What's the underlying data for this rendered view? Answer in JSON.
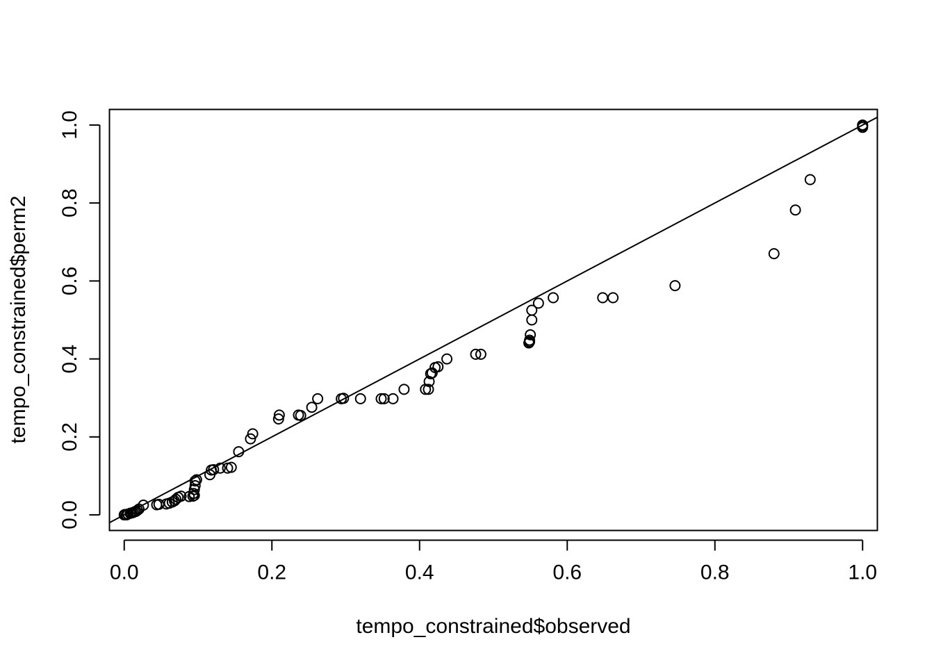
{
  "chart_data": {
    "type": "scatter",
    "title": "",
    "xlabel": "tempo_constrained$observed",
    "ylabel": "tempo_constrained$perm2",
    "xlim": [
      -0.02,
      1.02
    ],
    "ylim": [
      -0.04,
      1.04
    ],
    "xticks": [
      0.0,
      0.2,
      0.4,
      0.6,
      0.8,
      1.0
    ],
    "xtick_labels": [
      "0.0",
      "0.2",
      "0.4",
      "0.6",
      "0.8",
      "1.0"
    ],
    "yticks": [
      0.0,
      0.2,
      0.4,
      0.6,
      0.8,
      1.0
    ],
    "ytick_labels": [
      "0.0",
      "0.2",
      "0.4",
      "0.6",
      "0.8",
      "1.0"
    ],
    "grid": false,
    "reference_line": {
      "intercept": 0,
      "slope": 1
    },
    "marker": "open-circle",
    "colors": {
      "points": "#000000",
      "line": "#000000",
      "frame": "#000000"
    },
    "points": [
      [
        0.0,
        0.0
      ],
      [
        0.001,
        0.001
      ],
      [
        0.003,
        0.0
      ],
      [
        0.005,
        0.002
      ],
      [
        0.008,
        0.004
      ],
      [
        0.01,
        0.005
      ],
      [
        0.012,
        0.006
      ],
      [
        0.014,
        0.008
      ],
      [
        0.016,
        0.009
      ],
      [
        0.018,
        0.012
      ],
      [
        0.02,
        0.015
      ],
      [
        0.026,
        0.025
      ],
      [
        0.044,
        0.026
      ],
      [
        0.047,
        0.027
      ],
      [
        0.057,
        0.028
      ],
      [
        0.061,
        0.03
      ],
      [
        0.065,
        0.033
      ],
      [
        0.068,
        0.036
      ],
      [
        0.07,
        0.04
      ],
      [
        0.073,
        0.045
      ],
      [
        0.077,
        0.048
      ],
      [
        0.088,
        0.047
      ],
      [
        0.093,
        0.048
      ],
      [
        0.095,
        0.05
      ],
      [
        0.094,
        0.055
      ],
      [
        0.095,
        0.065
      ],
      [
        0.096,
        0.075
      ],
      [
        0.096,
        0.087
      ],
      [
        0.098,
        0.09
      ],
      [
        0.116,
        0.103
      ],
      [
        0.118,
        0.115
      ],
      [
        0.121,
        0.116
      ],
      [
        0.13,
        0.12
      ],
      [
        0.14,
        0.12
      ],
      [
        0.145,
        0.122
      ],
      [
        0.155,
        0.162
      ],
      [
        0.171,
        0.195
      ],
      [
        0.174,
        0.208
      ],
      [
        0.209,
        0.246
      ],
      [
        0.21,
        0.256
      ],
      [
        0.236,
        0.256
      ],
      [
        0.239,
        0.255
      ],
      [
        0.254,
        0.276
      ],
      [
        0.262,
        0.298
      ],
      [
        0.294,
        0.298
      ],
      [
        0.297,
        0.299
      ],
      [
        0.32,
        0.298
      ],
      [
        0.348,
        0.298
      ],
      [
        0.352,
        0.298
      ],
      [
        0.364,
        0.298
      ],
      [
        0.379,
        0.322
      ],
      [
        0.408,
        0.322
      ],
      [
        0.412,
        0.322
      ],
      [
        0.413,
        0.342
      ],
      [
        0.415,
        0.362
      ],
      [
        0.417,
        0.364
      ],
      [
        0.421,
        0.378
      ],
      [
        0.425,
        0.38
      ],
      [
        0.437,
        0.4
      ],
      [
        0.476,
        0.412
      ],
      [
        0.483,
        0.412
      ],
      [
        0.548,
        0.441
      ],
      [
        0.549,
        0.444
      ],
      [
        0.549,
        0.448
      ],
      [
        0.55,
        0.462
      ],
      [
        0.552,
        0.5
      ],
      [
        0.552,
        0.525
      ],
      [
        0.561,
        0.543
      ],
      [
        0.581,
        0.557
      ],
      [
        0.648,
        0.557
      ],
      [
        0.662,
        0.557
      ],
      [
        0.746,
        0.588
      ],
      [
        0.88,
        0.67
      ],
      [
        0.909,
        0.782
      ],
      [
        0.929,
        0.86
      ],
      [
        1.0,
        0.994
      ],
      [
        1.0,
        0.998
      ],
      [
        1.0,
        1.0
      ]
    ]
  }
}
